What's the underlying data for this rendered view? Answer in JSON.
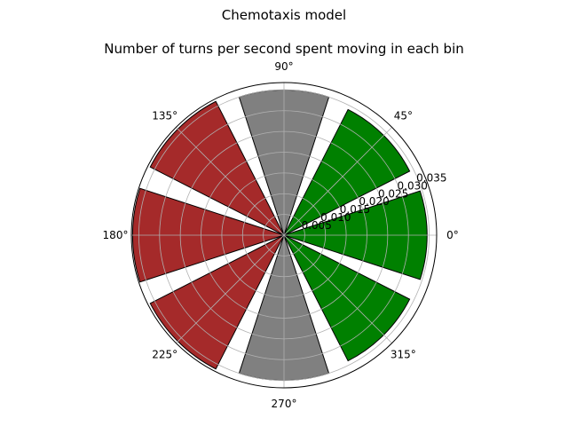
{
  "chart_data": {
    "type": "polar-bar",
    "suptitle": "Chemotaxis model",
    "title": "Number of turns per second spent moving in each bin",
    "angle_tick_labels": [
      "0°",
      "45°",
      "90°",
      "135°",
      "180°",
      "225°",
      "270°",
      "315°"
    ],
    "radial_tick_labels": [
      "0.005",
      "0.010",
      "0.015",
      "0.020",
      "0.025",
      "0.030",
      "0.035"
    ],
    "radial_ticks": [
      0.005,
      0.01,
      0.015,
      0.02,
      0.025,
      0.03,
      0.035
    ],
    "rlim": [
      0,
      0.0368
    ],
    "bars": [
      {
        "center_deg": 0,
        "value": 0.0345,
        "color": "#008000"
      },
      {
        "center_deg": 45,
        "value": 0.034,
        "color": "#008000"
      },
      {
        "center_deg": 90,
        "value": 0.035,
        "color": "#808080"
      },
      {
        "center_deg": 135,
        "value": 0.0362,
        "color": "#a52a2a"
      },
      {
        "center_deg": 180,
        "value": 0.0365,
        "color": "#a52a2a"
      },
      {
        "center_deg": 225,
        "value": 0.0362,
        "color": "#a52a2a"
      },
      {
        "center_deg": 270,
        "value": 0.035,
        "color": "#808080"
      },
      {
        "center_deg": 315,
        "value": 0.034,
        "color": "#008000"
      }
    ],
    "bar_width_deg": 36,
    "grid": true
  }
}
